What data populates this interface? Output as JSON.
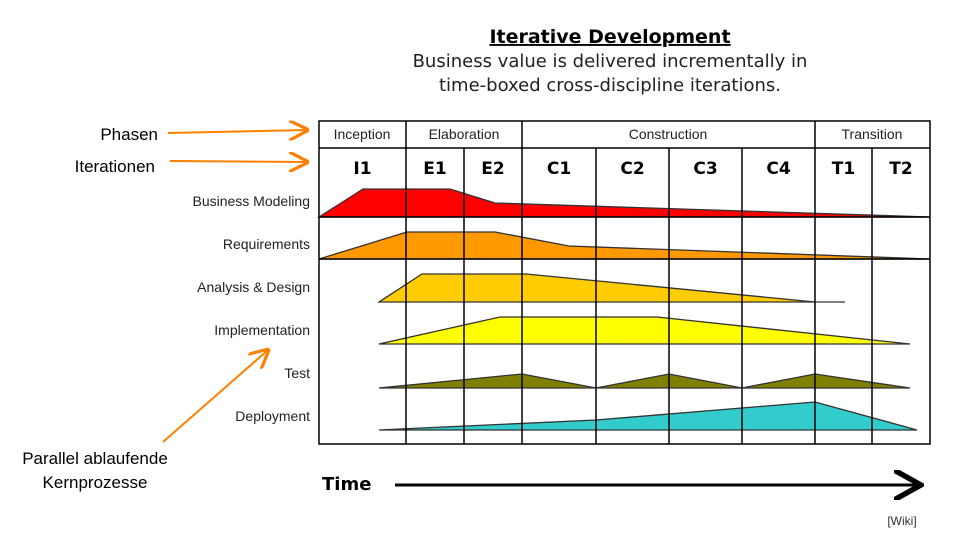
{
  "header": {
    "title": "Iterative Development",
    "subtitle_line1": "Business value is delivered incrementally in",
    "subtitle_line2": "time-boxed cross-discipline iterations."
  },
  "phases": [
    "Inception",
    "Elaboration",
    "Construction",
    "Transition"
  ],
  "iterations": [
    "I1",
    "E1",
    "E2",
    "C1",
    "C2",
    "C3",
    "C4",
    "T1",
    "T2"
  ],
  "disciplines": [
    {
      "label": "Business Modeling",
      "color": "#ff0000"
    },
    {
      "label": "Requirements",
      "color": "#ff9900"
    },
    {
      "label": "Analysis & Design",
      "color": "#ffcc00"
    },
    {
      "label": "Implementation",
      "color": "#ffff00"
    },
    {
      "label": "Test",
      "color": "#808000"
    },
    {
      "label": "Deployment",
      "color": "#33cccc"
    }
  ],
  "annotations": {
    "phasen": "Phasen",
    "iterationen": "Iterationen",
    "parallel_line1": "Parallel ablaufende",
    "parallel_line2": "Kernprozesse",
    "arrow_color": "#ff8000"
  },
  "time_label": "Time",
  "source": "[Wiki]"
}
